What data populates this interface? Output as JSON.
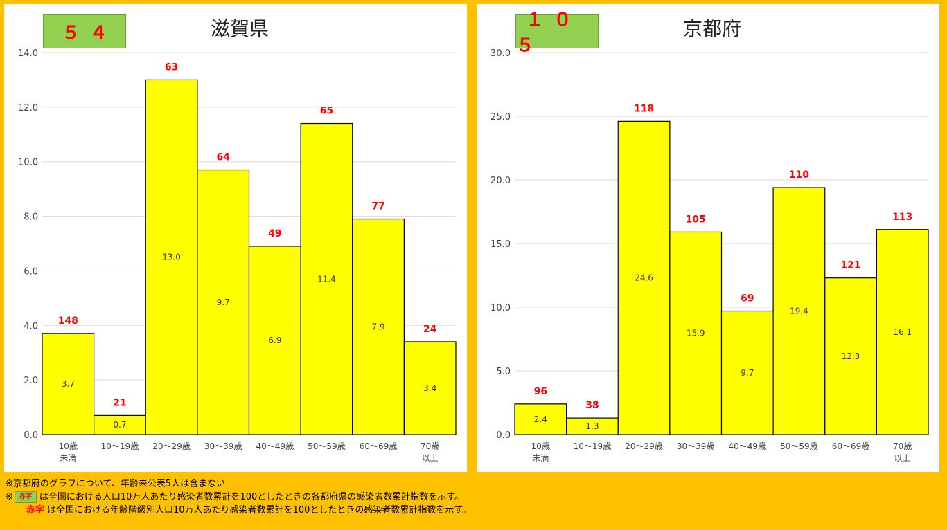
{
  "panels": [
    {
      "id": "shiga",
      "index": "５４",
      "title": "滋賀県"
    },
    {
      "id": "kyoto",
      "index": "１０５",
      "title": "京都府"
    }
  ],
  "notes": {
    "line1": "※京都府のグラフについて、年齢未公表5人は含まない",
    "mark": "※",
    "swatch_label": "赤字",
    "line2": "は全国における人口10万人あたり感染者数累計を100としたときの各都府県の感染者数累計指数を示す。",
    "red_label": "赤字",
    "line3": "は全国における年齢階級別人口10万人あたり感染者数累計を100としたときの感染者数累計指数を示す。"
  },
  "colors": {
    "background": "#FFC000",
    "bar_fill": "#FFFF00",
    "index_box": "#92D050",
    "index_text": "#FF0000"
  },
  "chart_data": [
    {
      "type": "bar",
      "title": "滋賀県",
      "categories": [
        "10歳\n未満",
        "10～19歳",
        "20～29歳",
        "30～39歳",
        "40～49歳",
        "50～59歳",
        "60～69歳",
        "70歳\n以上"
      ],
      "values": [
        3.7,
        0.7,
        13.0,
        9.7,
        6.9,
        11.4,
        7.9,
        3.4
      ],
      "value_labels": [
        "3.7",
        "0.7",
        "13.0",
        "9.7",
        "6.9",
        "11.4",
        "7.9",
        "3.4"
      ],
      "index_labels": [
        "148",
        "21",
        "63",
        "64",
        "49",
        "65",
        "77",
        "24"
      ],
      "yticks": [
        "0.0",
        "2.0",
        "4.0",
        "6.0",
        "8.0",
        "10.0",
        "12.0",
        "14.0"
      ],
      "ylim": [
        0,
        14
      ],
      "grid": true
    },
    {
      "type": "bar",
      "title": "京都府",
      "categories": [
        "10歳\n未満",
        "10～19歳",
        "20～29歳",
        "30～39歳",
        "40～49歳",
        "50～59歳",
        "60～69歳",
        "70歳\n以上"
      ],
      "values": [
        2.4,
        1.3,
        24.6,
        15.9,
        9.7,
        19.4,
        12.3,
        16.1
      ],
      "value_labels": [
        "2.4",
        "1.3",
        "24.6",
        "15.9",
        "9.7",
        "19.4",
        "12.3",
        "16.1"
      ],
      "index_labels": [
        "96",
        "38",
        "118",
        "105",
        "69",
        "110",
        "121",
        "113"
      ],
      "yticks": [
        "0.0",
        "5.0",
        "10.0",
        "15.0",
        "20.0",
        "25.0",
        "30.0"
      ],
      "ylim": [
        0,
        30
      ],
      "grid": true
    }
  ]
}
